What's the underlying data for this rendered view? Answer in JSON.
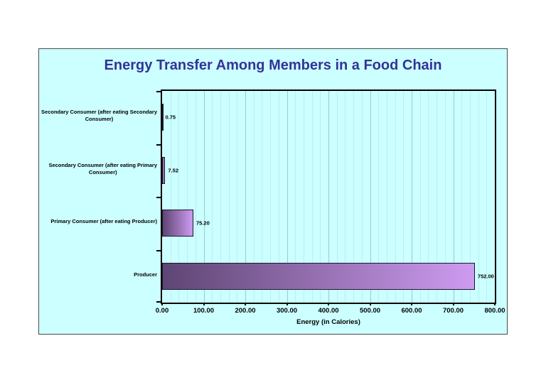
{
  "chart": {
    "background": "#CCFFFF",
    "title_color": "#333399",
    "bar_gradient_start": "#5E4573",
    "bar_gradient_end": "#CE9BF1",
    "bar_border_color": "#17172F",
    "plot_border_color": "#000000"
  },
  "chart_data": {
    "type": "bar",
    "orientation": "horizontal",
    "title": "Energy Transfer Among Members in a Food Chain",
    "categories": [
      "Secondary Consumer (after eating Secondary\nConsumer)",
      "Secondary Consumer (after eating Primary\nConsumer)",
      "Primary Consumer (after eating Producer)",
      "Producer"
    ],
    "values": [
      0.75,
      7.52,
      75.2,
      752.0
    ],
    "value_labels": [
      "0.75",
      "7.52",
      "75.20",
      "752.00"
    ],
    "xlabel": "Energy (in Calories)",
    "ylabel": "",
    "xlim": [
      0,
      800
    ],
    "x_tick_labels": [
      "0.00",
      "100.00",
      "200.00",
      "300.00",
      "400.00",
      "500.00",
      "600.00",
      "700.00",
      "800.00"
    ],
    "x_major_step": 100,
    "x_minor_step": 20,
    "grid": "vertical minor + major gridlines",
    "legend_position": "none"
  }
}
